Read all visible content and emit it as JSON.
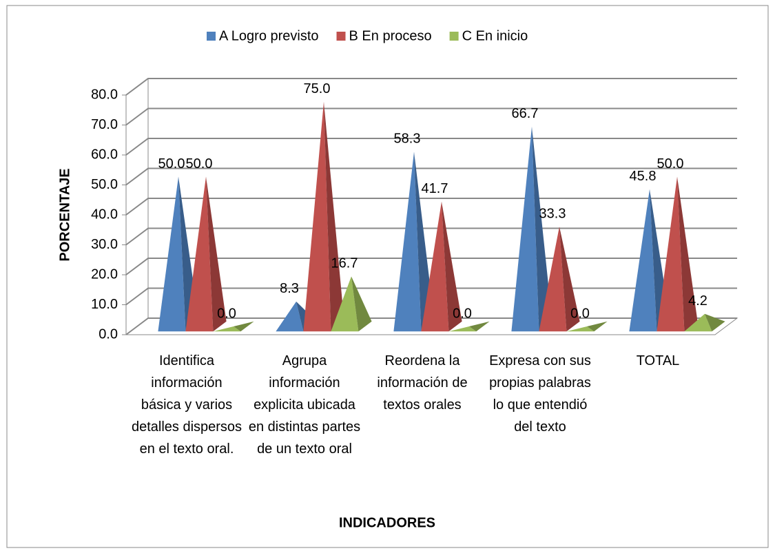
{
  "chart_data": {
    "type": "bar3d-pyramid",
    "categories": [
      "Identifica información básica y varios detalles dispersos en el texto oral.",
      "Agrupa información explicita ubicada en distintas partes de un texto oral",
      "Reordena la información de textos orales",
      "Expresa con sus propias palabras lo que entendió del texto",
      "TOTAL"
    ],
    "series": [
      {
        "name": "A Logro previsto",
        "color": "#4f81bd",
        "side": "#385d8a",
        "values": [
          50.0,
          8.3,
          58.3,
          66.7,
          45.8
        ],
        "value_labels": [
          "50.0",
          "8.3",
          "58.3",
          "66.7",
          "45.8"
        ]
      },
      {
        "name": "B En proceso",
        "color": "#c0504d",
        "side": "#8c3836",
        "values": [
          50.0,
          75.0,
          41.7,
          33.3,
          50.0
        ],
        "value_labels": [
          "50.0",
          "75.0",
          "41.7",
          "33.3",
          "50.0"
        ]
      },
      {
        "name": "C En inicio",
        "color": "#9bbb59",
        "side": "#71893f",
        "values": [
          0.0,
          16.7,
          0.0,
          0.0,
          4.2
        ],
        "value_labels": [
          "0.0",
          "16.7",
          "0.0",
          "0.0",
          "4.2"
        ]
      }
    ],
    "y_label": "PORCENTAJE",
    "x_label": "INDICADORES",
    "ylim": [
      0,
      80
    ],
    "yticks": [
      {
        "value": 0,
        "label": "0.0"
      },
      {
        "value": 10,
        "label": "10.0"
      },
      {
        "value": 20,
        "label": "20.0"
      },
      {
        "value": 30,
        "label": "30.0"
      },
      {
        "value": 40,
        "label": "40.0"
      },
      {
        "value": 50,
        "label": "50.0"
      },
      {
        "value": 60,
        "label": "60.0"
      },
      {
        "value": 70,
        "label": "70.0"
      },
      {
        "value": 80,
        "label": "80.0"
      }
    ],
    "grid": true,
    "legend": "top"
  }
}
